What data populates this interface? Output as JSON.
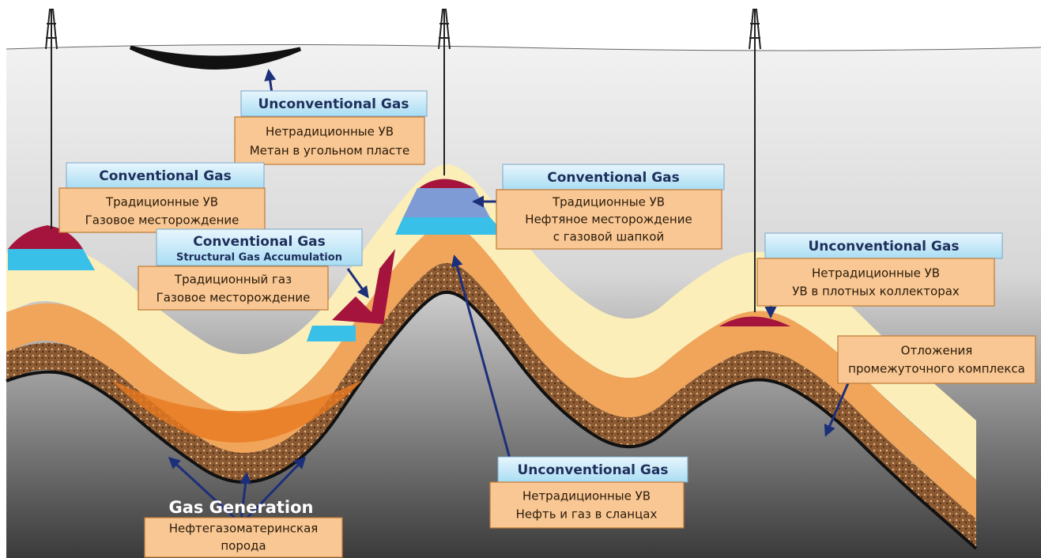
{
  "callouts": [
    {
      "header": "Unconventional Gas",
      "lines": [
        "Нетрадиционные УВ",
        "Метан в угольном пласте"
      ]
    },
    {
      "header": "Conventional Gas",
      "lines": [
        "Традиционные УВ",
        "Газовое месторождение"
      ]
    },
    {
      "header": "Conventional Gas",
      "subheader": "Structural Gas Accumulation",
      "lines": [
        "Традиционный газ",
        "Газовое месторождение"
      ]
    },
    {
      "header": "Conventional Gas",
      "lines": [
        "Традиционные УВ",
        "Нефтяное месторождение",
        "с газовой шапкой"
      ]
    },
    {
      "header": "Unconventional Gas",
      "lines": [
        "Нетрадиционные УВ",
        "УВ в плотных коллекторах"
      ]
    },
    {
      "header": "Unconventional Gas",
      "lines": [
        "Нетрадиционные УВ",
        "Нефть и газ в сланцах"
      ]
    }
  ],
  "notes": [
    {
      "lines": [
        "Отложения",
        "промежуточного комплекса"
      ]
    },
    {
      "lines": [
        "Нефтегазоматеринская",
        "порода"
      ]
    }
  ],
  "gas_generation": "Gas Generation"
}
